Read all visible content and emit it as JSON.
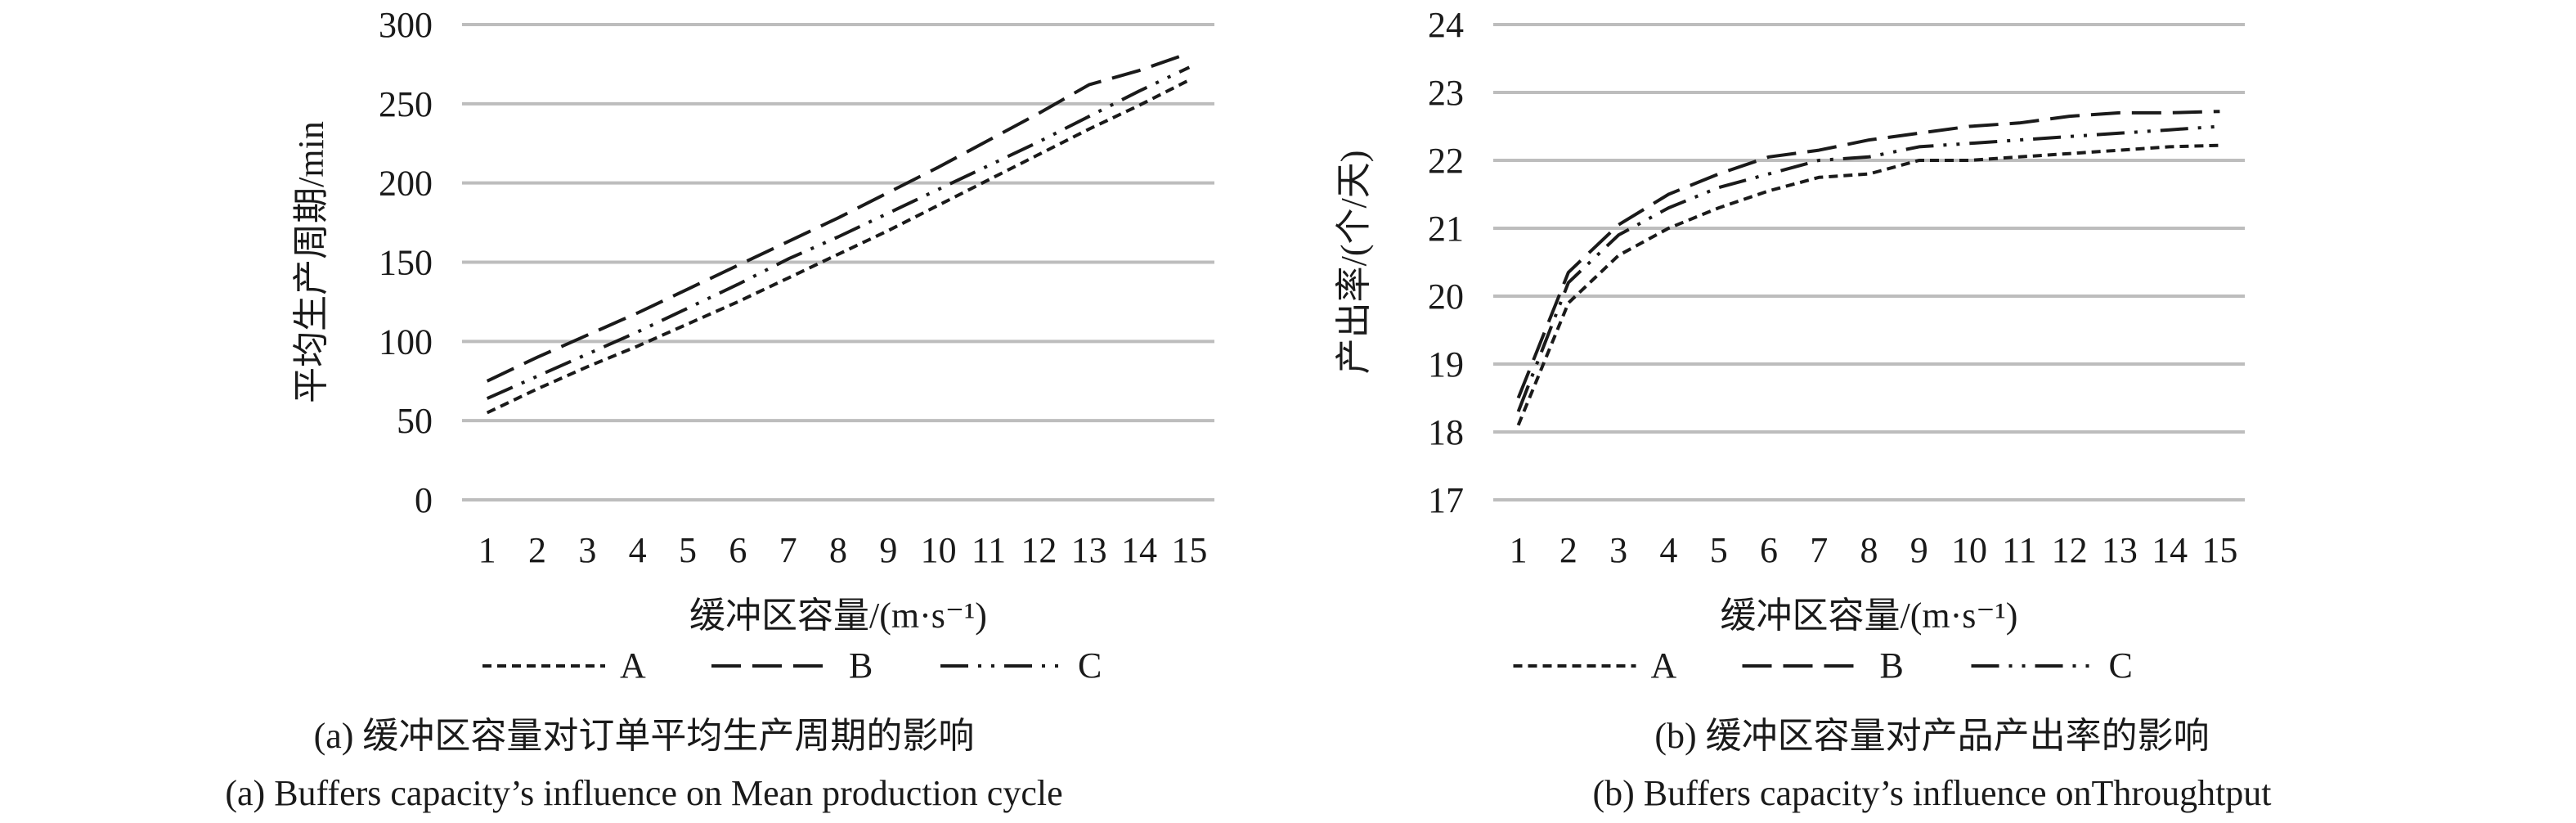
{
  "chart_data": [
    {
      "type": "line",
      "panel": "a",
      "caption_zh": "(a) 缓冲区容量对订单平均生产周期的影响",
      "caption_en": "(a) Buffers capacity’s influence on Mean production cycle",
      "xlabel": "缓冲区容量/(m·s⁻¹)",
      "ylabel": "平均生产周期/min",
      "categories": [
        "1",
        "2",
        "3",
        "4",
        "5",
        "6",
        "7",
        "8",
        "9",
        "10",
        "11",
        "12",
        "13",
        "14",
        "15"
      ],
      "ylim": [
        0,
        300
      ],
      "yticks": [
        "0",
        "50",
        "100",
        "150",
        "200",
        "250",
        "300"
      ],
      "grid": true,
      "legend_position": "bottom",
      "series": [
        {
          "name": "A",
          "dash": "dashed",
          "values": [
            55,
            70,
            84,
            97,
            111,
            125,
            140,
            155,
            170,
            186,
            202,
            218,
            234,
            249,
            265
          ]
        },
        {
          "name": "B",
          "dash": "longdash",
          "values": [
            75,
            90,
            104,
            118,
            133,
            148,
            163,
            178,
            194,
            210,
            227,
            244,
            262,
            271,
            282
          ]
        },
        {
          "name": "C",
          "dash": "dashdotdot",
          "values": [
            64,
            78,
            92,
            106,
            121,
            136,
            152,
            166,
            181,
            196,
            211,
            226,
            242,
            258,
            273
          ]
        }
      ]
    },
    {
      "type": "line",
      "panel": "b",
      "caption_zh": "(b) 缓冲区容量对产品产出率的影响",
      "caption_en": "(b) Buffers capacity’s influence onThroughtput",
      "xlabel": "缓冲区容量/(m·s⁻¹)",
      "ylabel": "产出率/(个/天)",
      "categories": [
        "1",
        "2",
        "3",
        "4",
        "5",
        "6",
        "7",
        "8",
        "9",
        "10",
        "11",
        "12",
        "13",
        "14",
        "15"
      ],
      "ylim": [
        17,
        24
      ],
      "yticks": [
        "17",
        "18",
        "19",
        "20",
        "21",
        "22",
        "23",
        "24"
      ],
      "grid": true,
      "legend_position": "bottom",
      "series": [
        {
          "name": "A",
          "dash": "dashed",
          "values": [
            18.1,
            19.9,
            20.6,
            21.0,
            21.3,
            21.55,
            21.75,
            21.8,
            22.0,
            22.0,
            22.05,
            22.1,
            22.15,
            22.2,
            22.22
          ]
        },
        {
          "name": "B",
          "dash": "longdash",
          "values": [
            18.5,
            20.35,
            21.05,
            21.5,
            21.8,
            22.05,
            22.15,
            22.3,
            22.4,
            22.5,
            22.55,
            22.65,
            22.7,
            22.7,
            22.72
          ]
        },
        {
          "name": "C",
          "dash": "dashdotdot",
          "values": [
            18.3,
            20.2,
            20.9,
            21.3,
            21.6,
            21.8,
            22.0,
            22.05,
            22.2,
            22.25,
            22.3,
            22.35,
            22.4,
            22.45,
            22.5
          ]
        }
      ]
    }
  ]
}
